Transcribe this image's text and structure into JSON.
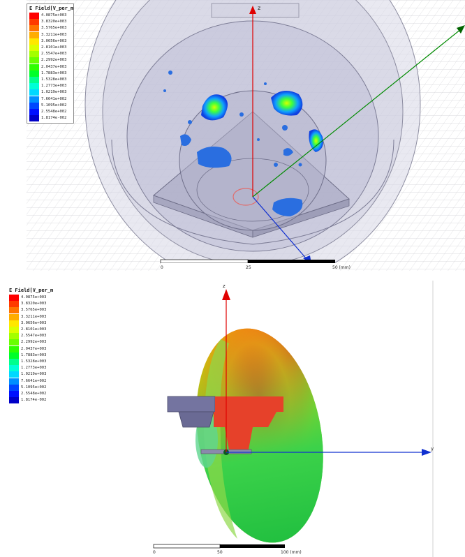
{
  "legend": {
    "title": "E Field[V_per_m",
    "values": [
      "4.0875e+003",
      "3.8320e+003",
      "3.5765e+003",
      "3.3211e+003",
      "3.0656e+003",
      "2.8101e+003",
      "2.5547e+003",
      "2.2992e+003",
      "2.0437e+003",
      "1.7883e+003",
      "1.5328e+003",
      "1.2773e+003",
      "1.0219e+003",
      "7.6641e+002",
      "5.1095e+002",
      "2.5548e+002",
      "1.8174e-002"
    ],
    "colors": [
      "#ff0000",
      "#ff3a00",
      "#ff7400",
      "#ffad00",
      "#ffe700",
      "#dcff00",
      "#a3ff00",
      "#69ff00",
      "#2fff00",
      "#00ff2a",
      "#00ff8c",
      "#00ffd6",
      "#00d8ff",
      "#008fff",
      "#0046ff",
      "#0010ff",
      "#0000c8"
    ]
  },
  "top_view": {
    "axis_z": "z",
    "scale": {
      "ticks": [
        "0",
        "25",
        "50 (mm)"
      ]
    }
  },
  "bottom_view": {
    "axis_z": "z",
    "axis_y": "y",
    "scale": {
      "ticks": [
        "0",
        "50",
        "100 (mm)"
      ]
    }
  }
}
